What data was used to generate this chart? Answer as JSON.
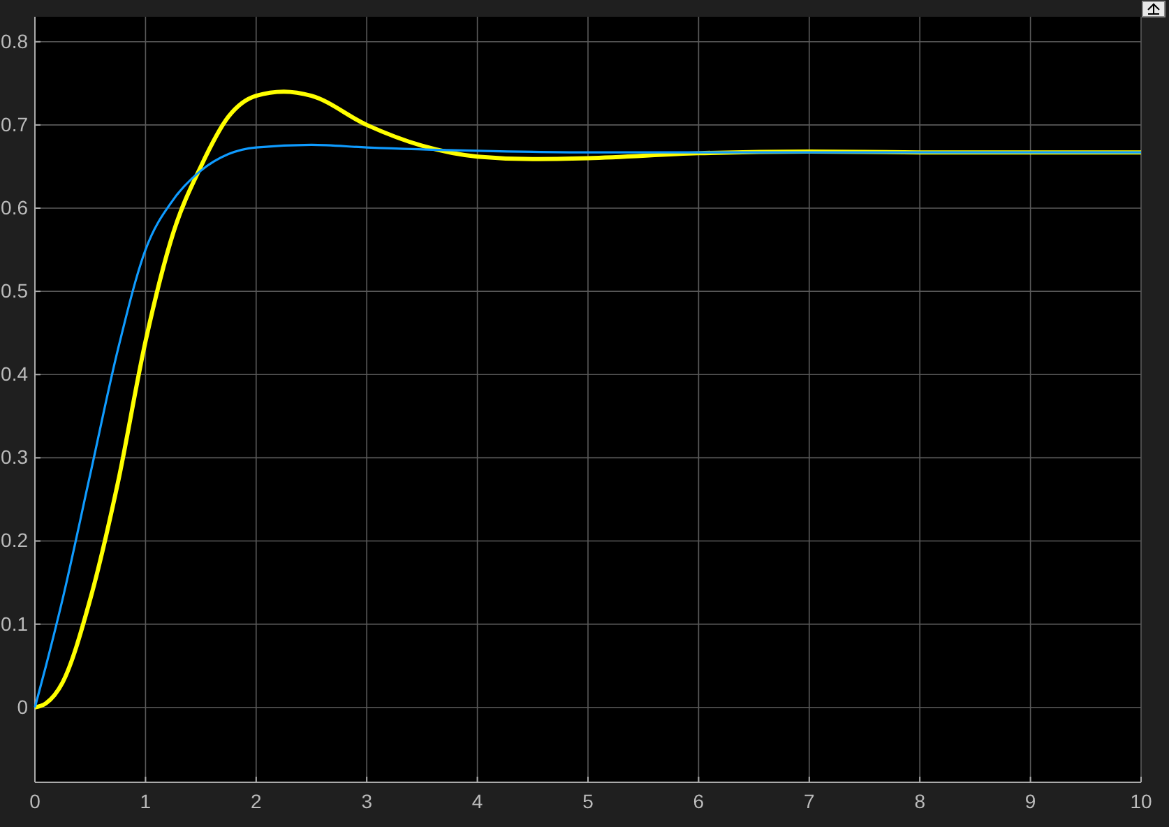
{
  "chart_data": {
    "type": "line",
    "xlim": [
      0,
      10
    ],
    "ylim": [
      -0.09,
      0.83
    ],
    "xticks": [
      0,
      1,
      2,
      3,
      4,
      5,
      6,
      7,
      8,
      9,
      10
    ],
    "yticks": [
      0,
      0.1,
      0.2,
      0.3,
      0.4,
      0.5,
      0.6,
      0.7,
      0.8
    ],
    "grid": true,
    "line_style": "solid",
    "series": [
      {
        "color": "#ffff00",
        "x": [
          0,
          0.1,
          0.25,
          0.5,
          0.75,
          1,
          1.25,
          1.5,
          1.75,
          2,
          2.25,
          2.5,
          3,
          3.5,
          4,
          4.5,
          5,
          6,
          7,
          8,
          10
        ],
        "values": [
          0,
          0.005,
          0.03,
          0.13,
          0.27,
          0.44,
          0.57,
          0.65,
          0.71,
          0.735,
          0.74,
          0.735,
          0.7,
          0.675,
          0.662,
          0.659,
          0.66,
          0.666,
          0.668,
          0.667,
          0.667
        ]
      },
      {
        "color": "#0f9bff",
        "x": [
          0,
          0.1,
          0.25,
          0.5,
          0.75,
          1,
          1.25,
          1.5,
          1.75,
          2,
          2.5,
          3,
          4,
          5,
          10
        ],
        "values": [
          0,
          0.05,
          0.13,
          0.28,
          0.43,
          0.55,
          0.61,
          0.645,
          0.665,
          0.673,
          0.676,
          0.673,
          0.669,
          0.667,
          0.667
        ]
      }
    ]
  }
}
